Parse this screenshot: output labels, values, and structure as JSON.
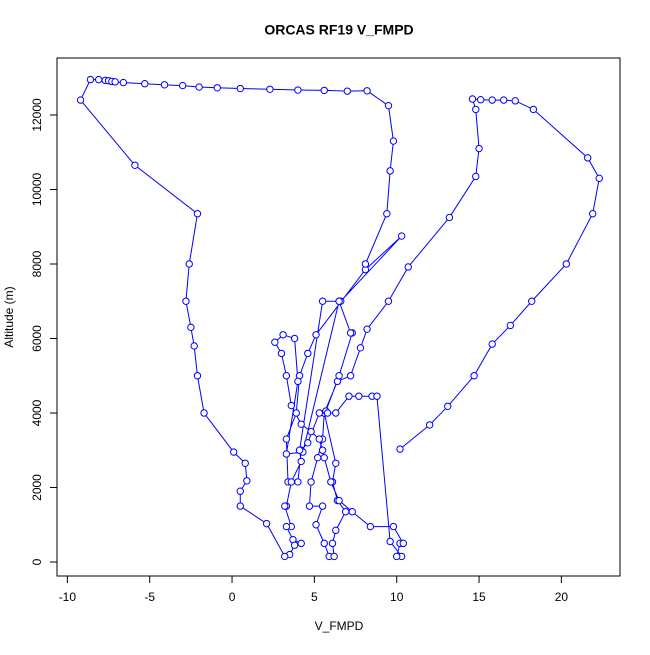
{
  "chart_data": {
    "type": "line",
    "title": "ORCAS RF19 V_FMPD",
    "x_label": "V_FMPD",
    "y_label": "Altitude (m)",
    "color": "#0000ff",
    "x": [
      10.2,
      12,
      13.1,
      14.7,
      15.8,
      16.9,
      18.2,
      20.3,
      21.9,
      22.3,
      21.6,
      18.3,
      17.2,
      16.5,
      15.8,
      15.1,
      14.6,
      14.8,
      15,
      14.8,
      13.2,
      10.7,
      9.5,
      8.2,
      7.8,
      7.2,
      6.4,
      5.6,
      5.5,
      5.2,
      4.8,
      4.7,
      5.5,
      5.1,
      5.6,
      5.9,
      6.2,
      6.1,
      6.3,
      6.9,
      6.4,
      6.1,
      6.3,
      5.6,
      5.7,
      6.5,
      7.3,
      7.2,
      6.5,
      6.6,
      10.3,
      8.1,
      5.1,
      4.6,
      4.1,
      3.9,
      3.3,
      3.4,
      4,
      4.2,
      4.6,
      5.3,
      5.8,
      6.3,
      7.1,
      7.7,
      8.5,
      8.8,
      9.6,
      10.3,
      10,
      10.2,
      10.4,
      9.8,
      8.4,
      7.3,
      6.5,
      6,
      5.6,
      5.5,
      5.3,
      4.8,
      4.2,
      3.6,
      3.3,
      3,
      2.6,
      3.1,
      3.8,
      4,
      3.3,
      4.3,
      6.5,
      5.5,
      4.1,
      4.2,
      3.6,
      3.3,
      3.2,
      3.6,
      3.3,
      3.7,
      4.2,
      3.8,
      3.5,
      3.2,
      2.1,
      0.5,
      0.5,
      0.9,
      0.8,
      0.1,
      -1.7,
      -2.1,
      -2.3,
      -2.5,
      -2.8,
      -2.6,
      -2.1,
      -5.9,
      -9.2,
      -8.6,
      -8.1,
      -7.7,
      -7.5,
      -7.3,
      -7.1,
      -6.6,
      -5.3,
      -4.1,
      -3,
      -2,
      -0.9,
      0.5,
      2.3,
      4,
      5.6,
      7,
      8.2,
      9.5,
      9.8,
      9.6,
      9.4,
      8.1
    ],
    "values": [
      3030,
      3680,
      4180,
      5000,
      5850,
      6350,
      7000,
      8000,
      9350,
      10300,
      10850,
      12150,
      12380,
      12400,
      12400,
      12410,
      12430,
      12150,
      11100,
      10350,
      9250,
      7920,
      7000,
      6250,
      5750,
      5000,
      4850,
      4000,
      3300,
      2800,
      2150,
      1500,
      1500,
      1000,
      500,
      150,
      150,
      500,
      850,
      1350,
      1650,
      2150,
      2650,
      4000,
      4050,
      5000,
      6150,
      6150,
      7000,
      7000,
      8750,
      7850,
      6100,
      5600,
      5000,
      4000,
      3300,
      2150,
      2150,
      3000,
      3200,
      4000,
      4000,
      4000,
      4450,
      4450,
      4450,
      4450,
      550,
      150,
      150,
      500,
      500,
      950,
      950,
      1350,
      1650,
      2150,
      2800,
      3000,
      3300,
      3500,
      3700,
      4200,
      5000,
      5600,
      5900,
      6100,
      6000,
      4850,
      2900,
      2950,
      7000,
      7000,
      3000,
      2700,
      2150,
      1500,
      1500,
      950,
      950,
      600,
      500,
      450,
      200,
      150,
      1030,
      1500,
      1900,
      2180,
      2650,
      2950,
      4000,
      5000,
      5800,
      6300,
      7000,
      8000,
      9350,
      10650,
      12400,
      12950,
      12950,
      12930,
      12920,
      12900,
      12890,
      12870,
      12840,
      12810,
      12790,
      12750,
      12730,
      12710,
      12690,
      12670,
      12660,
      12640,
      12650,
      12250,
      11300,
      10500,
      9350,
      8000
    ],
    "xlim": [
      -10.63,
      23.56
    ],
    "ylim": [
      -376,
      13530
    ],
    "xticks": [
      -10,
      -5,
      0,
      5,
      10,
      15,
      20
    ],
    "yticks": [
      0,
      2000,
      4000,
      6000,
      8000,
      10000,
      12000
    ]
  }
}
